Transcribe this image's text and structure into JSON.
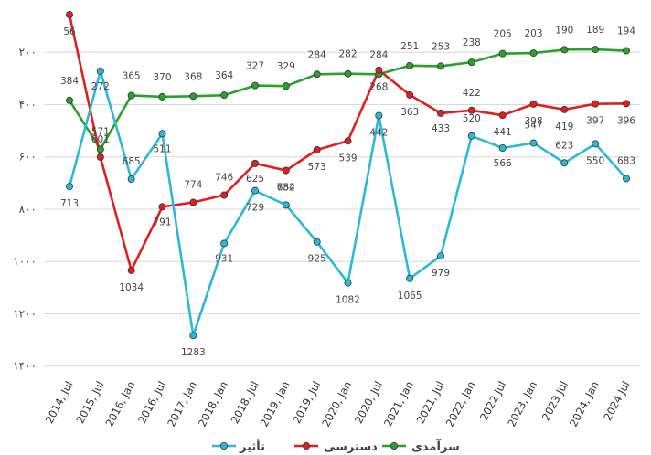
{
  "chart_data": {
    "type": "line",
    "title": "",
    "xlabel": "",
    "ylabel": "",
    "y_inverted": true,
    "ylim": [
      0,
      1400
    ],
    "y_ticks": [
      200,
      400,
      600,
      800,
      1000,
      1200,
      1400
    ],
    "y_tick_labels": [
      "۲۰۰",
      "۴۰۰",
      "۶۰۰",
      "۸۰۰",
      "۱۰۰۰",
      "۱۲۰۰",
      "۱۴۰۰"
    ],
    "grid": "horizontal",
    "legend_position": "bottom",
    "categories": [
      "2014, Jul",
      "2015, Jul",
      "2016, Jan",
      "2016, Jul",
      "2017, Jan",
      "2018, Jan",
      "2018, Jul",
      "2019, Jan",
      "2019, Jul",
      "2020, Jan",
      "2020, Jul",
      "2021, Jan",
      "2021, Jul",
      "2022, Jan",
      "2022 Jul",
      "2023, Jan",
      "2023 Jul",
      "2024, Jan",
      "2024 Jul"
    ],
    "series": [
      {
        "name": "تأثیر",
        "color": "#2eb8d8",
        "values": [
          713,
          272,
          685,
          511,
          1283,
          931,
          729,
          784,
          925,
          1082,
          442,
          1065,
          979,
          520,
          566,
          547,
          623,
          550,
          683
        ]
      },
      {
        "name": "دسترسی",
        "color": "#e02020",
        "values": [
          56,
          601,
          1034,
          791,
          774,
          746,
          625,
          652,
          573,
          539,
          268,
          363,
          433,
          422,
          441,
          398,
          419,
          397,
          396
        ]
      },
      {
        "name": "سرآمدی",
        "color": "#2ca02c",
        "values": [
          384,
          571,
          365,
          370,
          368,
          364,
          327,
          329,
          284,
          282,
          284,
          251,
          253,
          238,
          205,
          203,
          190,
          189,
          194
        ]
      }
    ]
  }
}
